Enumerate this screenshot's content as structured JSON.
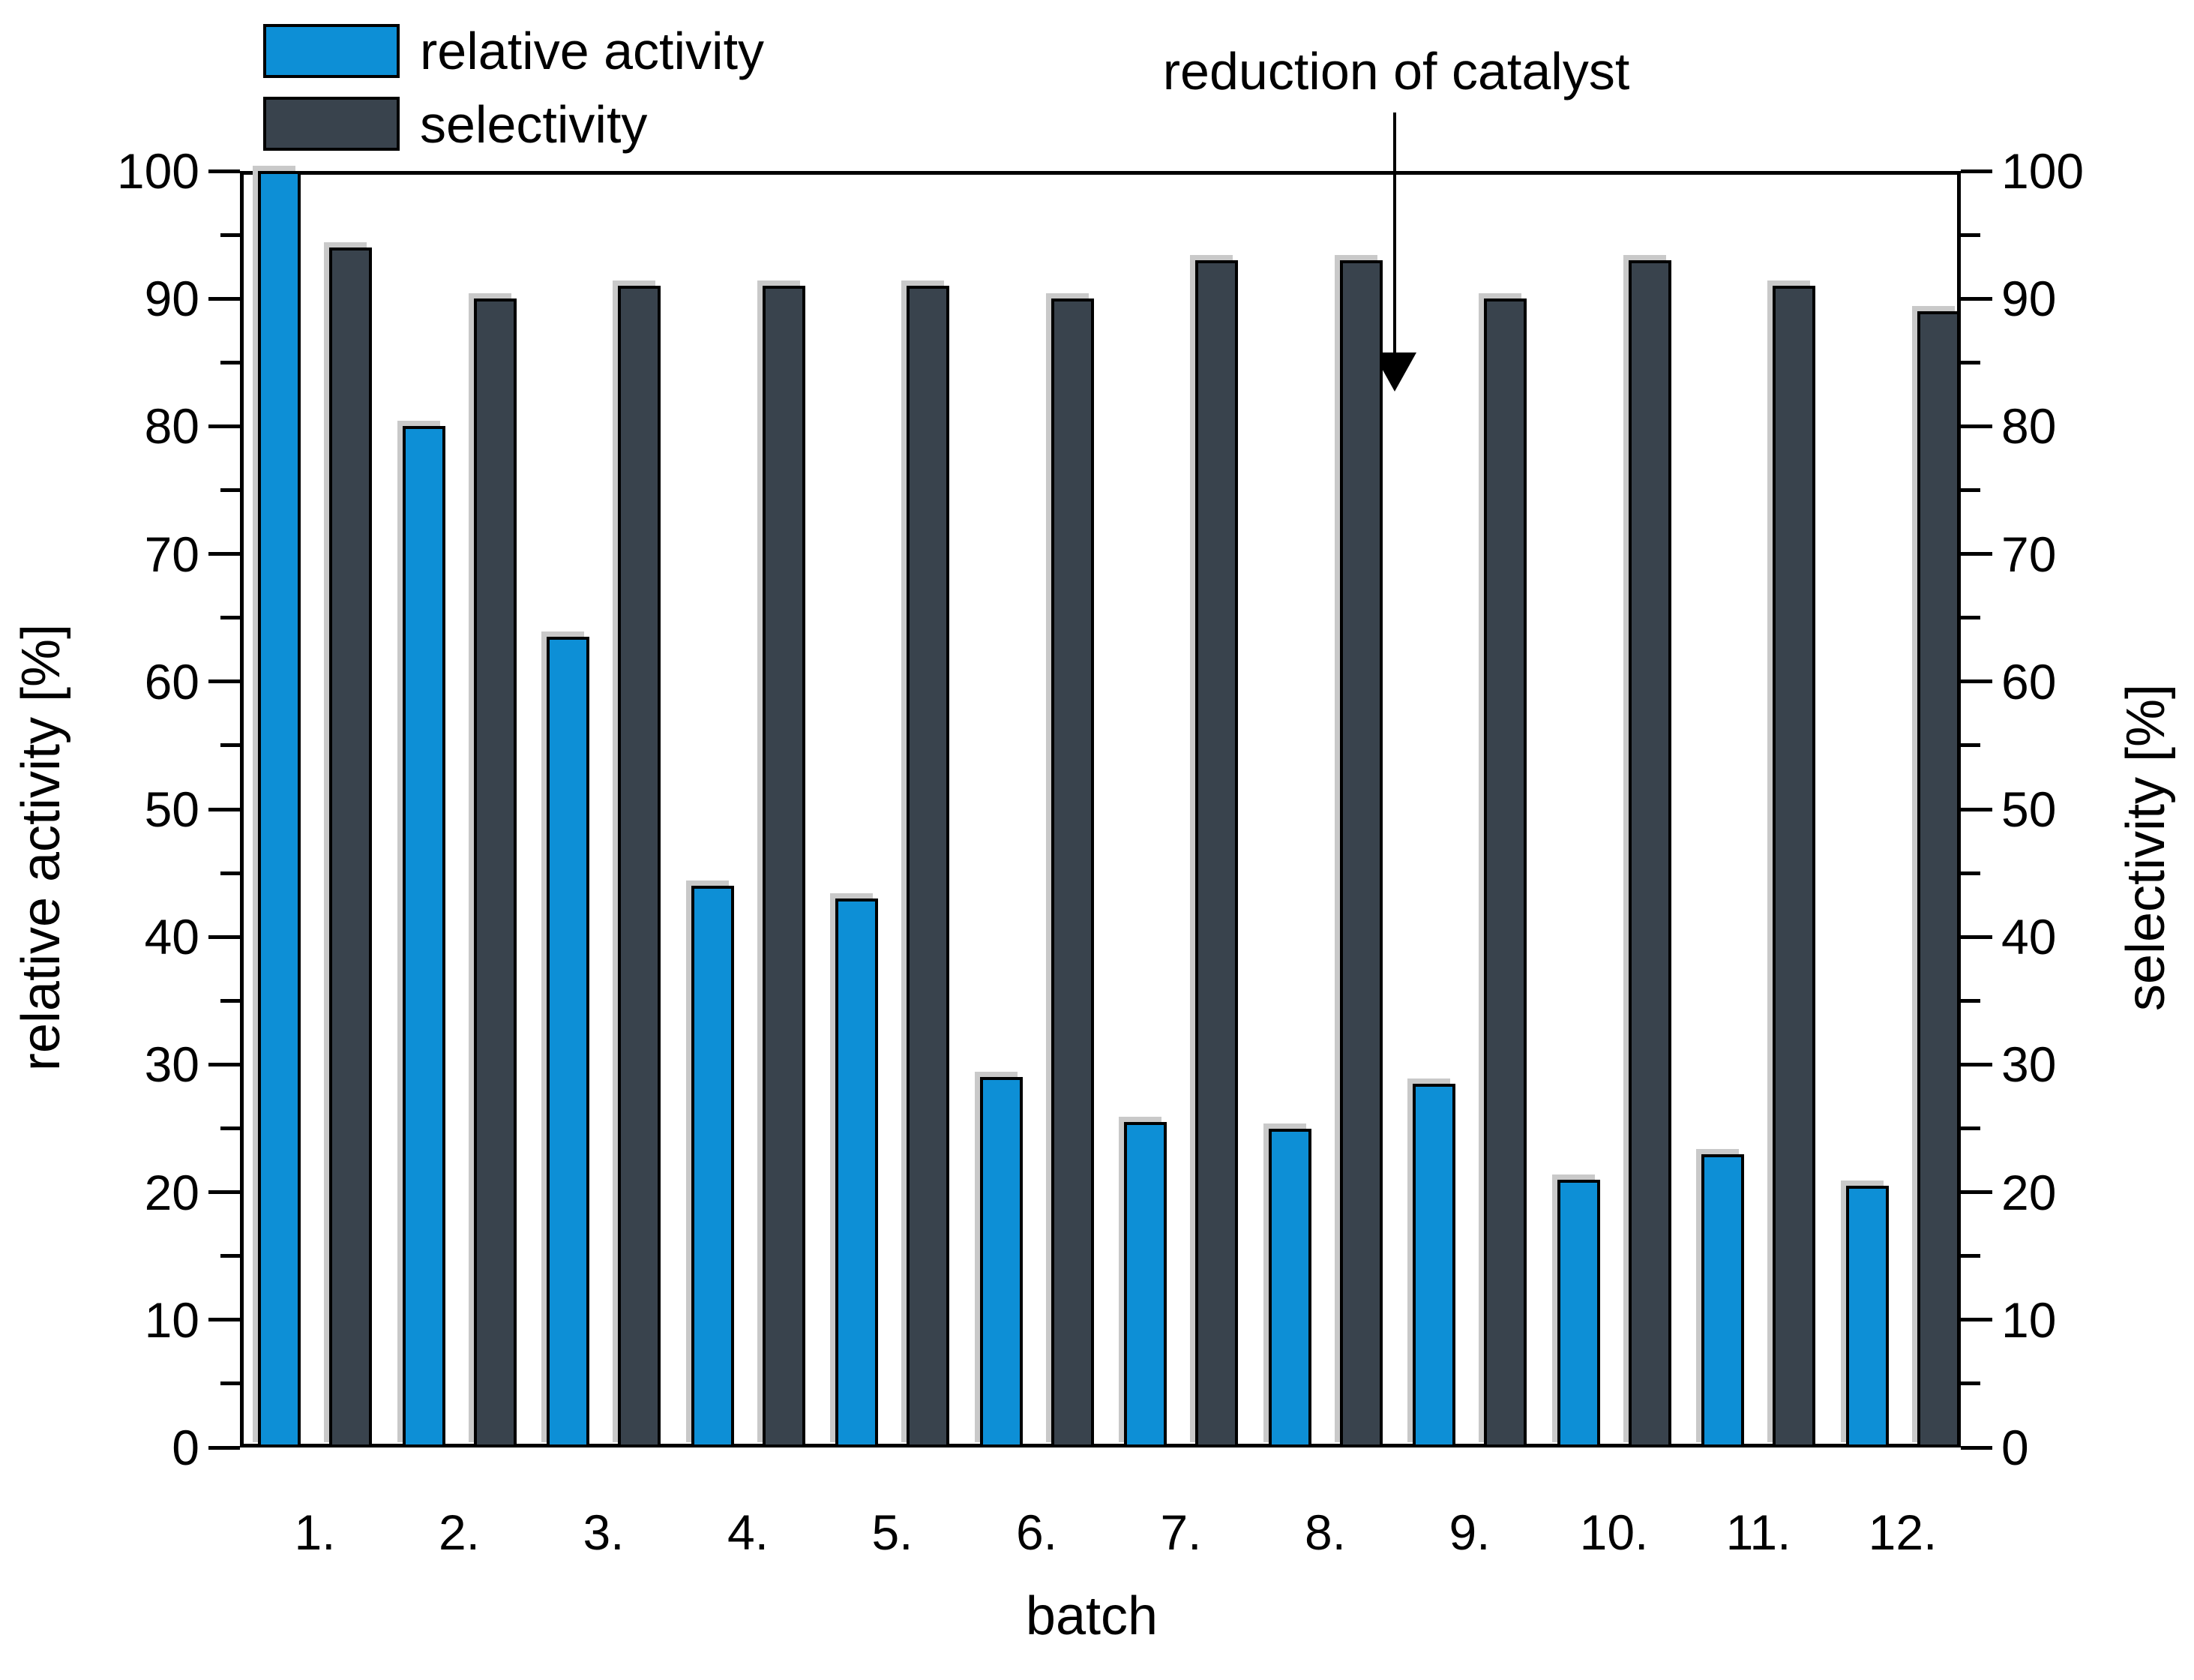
{
  "figure_bg": "#ffffff",
  "legend": {
    "items": [
      {
        "label": "relative activity",
        "color": "#0d8fd6"
      },
      {
        "label": "selectivity",
        "color": "#39434d"
      }
    ]
  },
  "annotation": {
    "text": "reduction of catalyst"
  },
  "axes": {
    "left_title": "relative activity [%]",
    "right_title": "selectivity [%]",
    "x_title": "batch",
    "y_ticks": [
      0,
      10,
      20,
      30,
      40,
      50,
      60,
      70,
      80,
      90,
      100
    ],
    "y_minor_step": 5,
    "ylim": [
      0,
      100
    ]
  },
  "chart_data": {
    "type": "bar",
    "title": "",
    "xlabel": "batch",
    "ylabel_left": "relative activity [%]",
    "ylabel_right": "selectivity [%]",
    "ylim": [
      0,
      100
    ],
    "grid": false,
    "legend_position": "top-left",
    "annotation": "reduction of catalyst",
    "annotation_arrow_between_batches": "8. and 9.",
    "categories": [
      "1.",
      "2.",
      "3.",
      "4.",
      "5.",
      "6.",
      "7.",
      "8.",
      "9.",
      "10.",
      "11.",
      "12."
    ],
    "series": [
      {
        "name": "relative activity",
        "axis": "left",
        "color": "#0d8fd6",
        "values": [
          100,
          80,
          63.5,
          44,
          43,
          29,
          25.5,
          25,
          28.5,
          21,
          23,
          20.5
        ]
      },
      {
        "name": "selectivity",
        "axis": "right",
        "color": "#39434d",
        "values": [
          94,
          90,
          91,
          91,
          91,
          90,
          93,
          93,
          90,
          93,
          91,
          89
        ]
      }
    ]
  }
}
